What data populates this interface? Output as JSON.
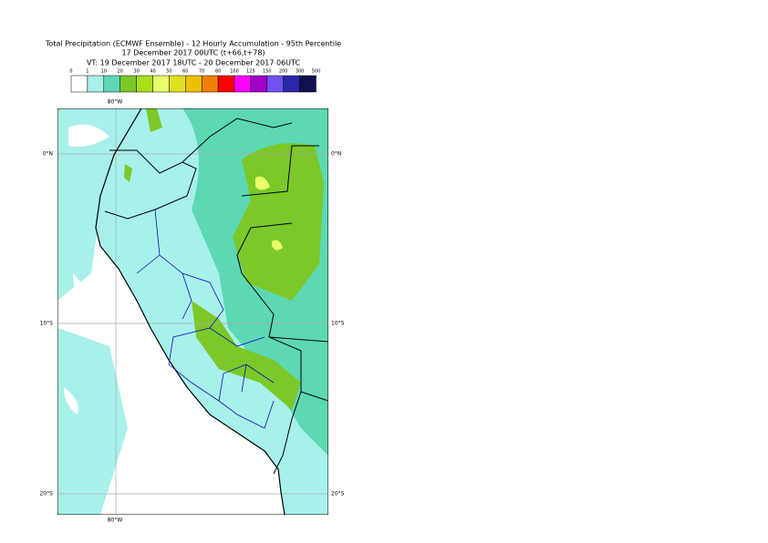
{
  "header": {
    "title": [
      "Total Precipitation (ECMWF Ensemble) - 12 Hourly Accumulation - 95th Percentile",
      "17 December 2017 00UTC (t+66,t+78)",
      "VT: 19 December 2017 18UTC - 20 December 2017 06UTC"
    ]
  },
  "legend": {
    "labels": [
      0,
      1,
      10,
      20,
      30,
      40,
      50,
      60,
      70,
      80,
      100,
      125,
      150,
      200,
      300,
      500
    ],
    "colors": [
      "#ffffff",
      "#a8f0ec",
      "#5cd8b4",
      "#7cc828",
      "#a8e018",
      "#e8ff68",
      "#e0e020",
      "#f0c000",
      "#f08000",
      "#ff0000",
      "#ff00ff",
      "#a000c8",
      "#7050f0",
      "#2828a8",
      "#101050"
    ]
  },
  "map": {
    "lon_label_top": "80°W",
    "lon_label_bottom": "80°W",
    "lat_labels_left": [
      "0°N",
      "10°S",
      "20°S"
    ],
    "lat_labels_right": [
      "0°N",
      "10°S",
      "20°S"
    ]
  }
}
